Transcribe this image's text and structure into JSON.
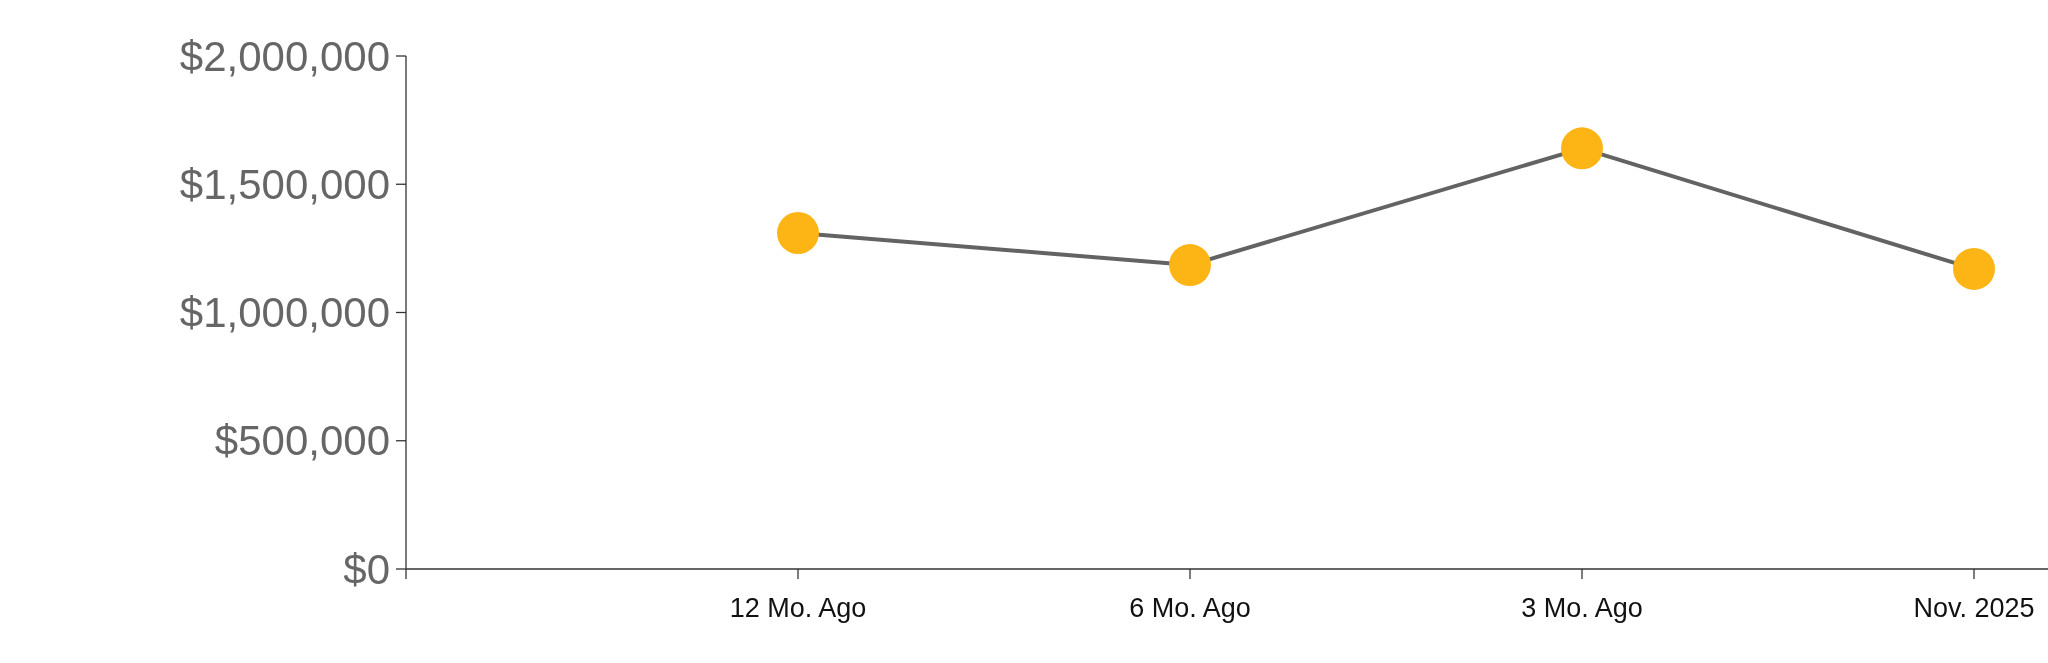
{
  "chart_data": {
    "type": "line",
    "categories": [
      null,
      "12 Mo. Ago",
      "6 Mo. Ago",
      "3 Mo. Ago",
      "Nov. 2025"
    ],
    "series": [
      {
        "color": "#636363",
        "colors": [
          null,
          "#fdb515",
          "#fdb515",
          "#fdb515",
          "#fdb515"
        ],
        "values": [
          null,
          1310000,
          1185000,
          1640000,
          1170000
        ]
      }
    ],
    "marker": "circle",
    "line_style": "solid",
    "ylim": [
      0,
      2000000
    ],
    "yticks": [
      {
        "value": 0,
        "label": "$0"
      },
      {
        "value": 500000,
        "label": "$500,000"
      },
      {
        "value": 1000000,
        "label": "$1,000,000"
      },
      {
        "value": 1500000,
        "label": "$1,500,000"
      },
      {
        "value": 2000000,
        "label": "$2,000,000"
      }
    ],
    "grid": false
  }
}
